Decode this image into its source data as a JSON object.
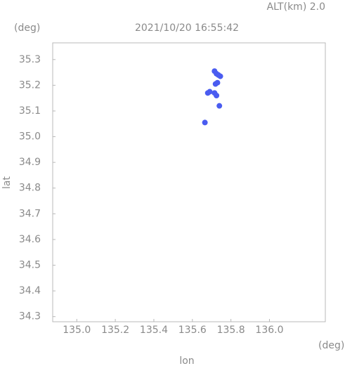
{
  "chart_data": {
    "type": "scatter",
    "annotation": "ALT(km) 2.0",
    "title": "2021/10/20 16:55:42",
    "y_unit": "(deg)",
    "x_unit": "(deg)",
    "xlabel": "lon",
    "ylabel": "lat",
    "color": "#4a5cf0",
    "x": [
      135.715,
      135.725,
      135.735,
      135.745,
      135.72,
      135.73,
      135.68,
      135.69,
      135.715,
      135.725,
      135.74,
      135.665
    ],
    "values": [
      35.255,
      35.245,
      35.24,
      35.235,
      35.205,
      35.21,
      35.17,
      35.175,
      35.17,
      35.16,
      35.12,
      35.055
    ],
    "xlim": [
      134.875,
      136.29
    ],
    "ylim": [
      34.28,
      35.365
    ],
    "xticks": [
      {
        "value": 135,
        "label": "135.0"
      },
      135.2,
      135.4,
      135.6,
      135.8,
      {
        "value": 136,
        "label": "136.0"
      }
    ],
    "yticks": [
      35.3,
      35.2,
      35.1,
      {
        "value": 35,
        "label": "35.0"
      },
      34.9,
      34.8,
      34.7,
      34.6,
      34.5,
      34.4,
      34.3
    ]
  }
}
